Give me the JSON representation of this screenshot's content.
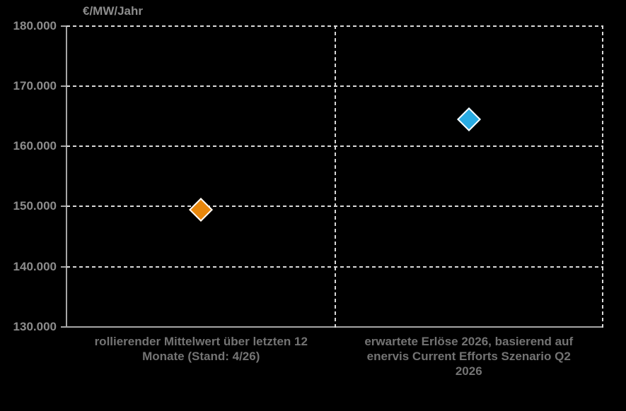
{
  "chart_data": {
    "type": "scatter",
    "title": "",
    "ylabel": "€/MW/Jahr",
    "xlabel": "",
    "ylim": [
      130000,
      180000
    ],
    "ytick_step": 10000,
    "yticks": [
      {
        "value": 180000,
        "label": "180.000"
      },
      {
        "value": 170000,
        "label": "170.000"
      },
      {
        "value": 160000,
        "label": "160.000"
      },
      {
        "value": 150000,
        "label": "150.000"
      },
      {
        "value": 140000,
        "label": "140.000"
      },
      {
        "value": 130000,
        "label": "130.000"
      }
    ],
    "categories": [
      {
        "label": "rollierender Mittelwert über letzten 12 Monate (Stand: 4/26)",
        "lines": [
          "rollierender Mittelwert über letzten 12",
          "Monate (Stand: 4/26)"
        ]
      },
      {
        "label": "erwartete Erlöse 2026, basierend auf enervis Current Efforts Szenario Q2 2026",
        "lines": [
          "erwartete Erlöse 2026, basierend auf",
          "enervis Current Efforts Szenario Q2",
          "2026"
        ]
      }
    ],
    "series": [
      {
        "id": "rolling-average-last-12-months",
        "category_index": 0,
        "value": 149500,
        "marker": "diamond",
        "color": "#E8870C"
      },
      {
        "id": "expected-revenue-2026",
        "category_index": 1,
        "value": 164500,
        "marker": "diamond",
        "color": "#29ABE2"
      }
    ],
    "grid": {
      "horizontal": "dashed",
      "category_separators": "dashed",
      "bottom_axis": "solid"
    },
    "legend": "none"
  },
  "colors": {
    "background": "#000000",
    "axis_line": "#A6A6A6",
    "gridline": "#D9D9D9",
    "tick_label_text": "#8C8C8C",
    "category_label_text": "#737373",
    "marker_outline": "#FFFFFF",
    "marker_orange": "#E8870C",
    "marker_blue": "#29ABE2"
  }
}
